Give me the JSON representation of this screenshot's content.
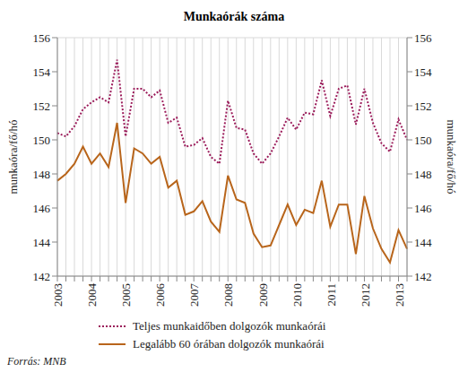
{
  "chart_data": {
    "type": "line",
    "title": "Munkaórák száma",
    "source": "Forrás: MNB",
    "ylabel": "munkaóra/fő/hó",
    "y2label": "munkaóra/fő/hó",
    "categories": [
      "2003",
      null,
      null,
      null,
      "2004",
      null,
      null,
      null,
      "2005",
      null,
      null,
      null,
      "2006",
      null,
      null,
      null,
      "2007",
      null,
      null,
      null,
      "2008",
      null,
      null,
      null,
      "2009",
      null,
      null,
      null,
      "2010",
      null,
      null,
      null,
      "2011",
      null,
      null,
      null,
      "2012",
      null,
      null,
      null,
      "2013",
      null
    ],
    "series": [
      {
        "name": "Teljes munkaidőben dolgozók munkaórái",
        "color": "#9b1b5a",
        "line_style": "dotted",
        "values": [
          150.4,
          150.2,
          150.8,
          151.8,
          152.2,
          152.5,
          152.2,
          154.7,
          150.2,
          153.0,
          153.0,
          152.5,
          152.9,
          151.0,
          151.3,
          149.6,
          149.7,
          150.1,
          149.0,
          148.6,
          152.3,
          150.7,
          150.6,
          149.2,
          148.6,
          149.2,
          150.2,
          151.3,
          150.6,
          151.6,
          151.5,
          153.5,
          151.4,
          153.0,
          153.2,
          150.9,
          153.0,
          151.0,
          149.8,
          149.3,
          151.2,
          150.0
        ]
      },
      {
        "name": "Legalább 60 órában dolgozók munkaórái",
        "color": "#b8651b",
        "line_style": "solid",
        "values": [
          147.6,
          148.0,
          148.6,
          149.6,
          148.6,
          149.2,
          148.4,
          151.0,
          146.3,
          149.5,
          149.2,
          148.6,
          149.0,
          147.2,
          147.6,
          145.6,
          145.8,
          146.4,
          145.2,
          144.6,
          147.9,
          146.5,
          146.3,
          144.5,
          143.7,
          143.8,
          145.0,
          146.2,
          145.0,
          145.9,
          145.7,
          147.6,
          144.9,
          146.2,
          146.2,
          143.3,
          146.7,
          144.8,
          143.6,
          142.8,
          144.7,
          143.6
        ]
      }
    ],
    "ylim": [
      142,
      156
    ],
    "yticks": [
      142,
      144,
      146,
      148,
      150,
      152,
      154,
      156
    ],
    "y2lim": [
      142,
      156
    ],
    "y2ticks": [
      142,
      144,
      146,
      148,
      150,
      152,
      154,
      156
    ],
    "grid": true
  }
}
